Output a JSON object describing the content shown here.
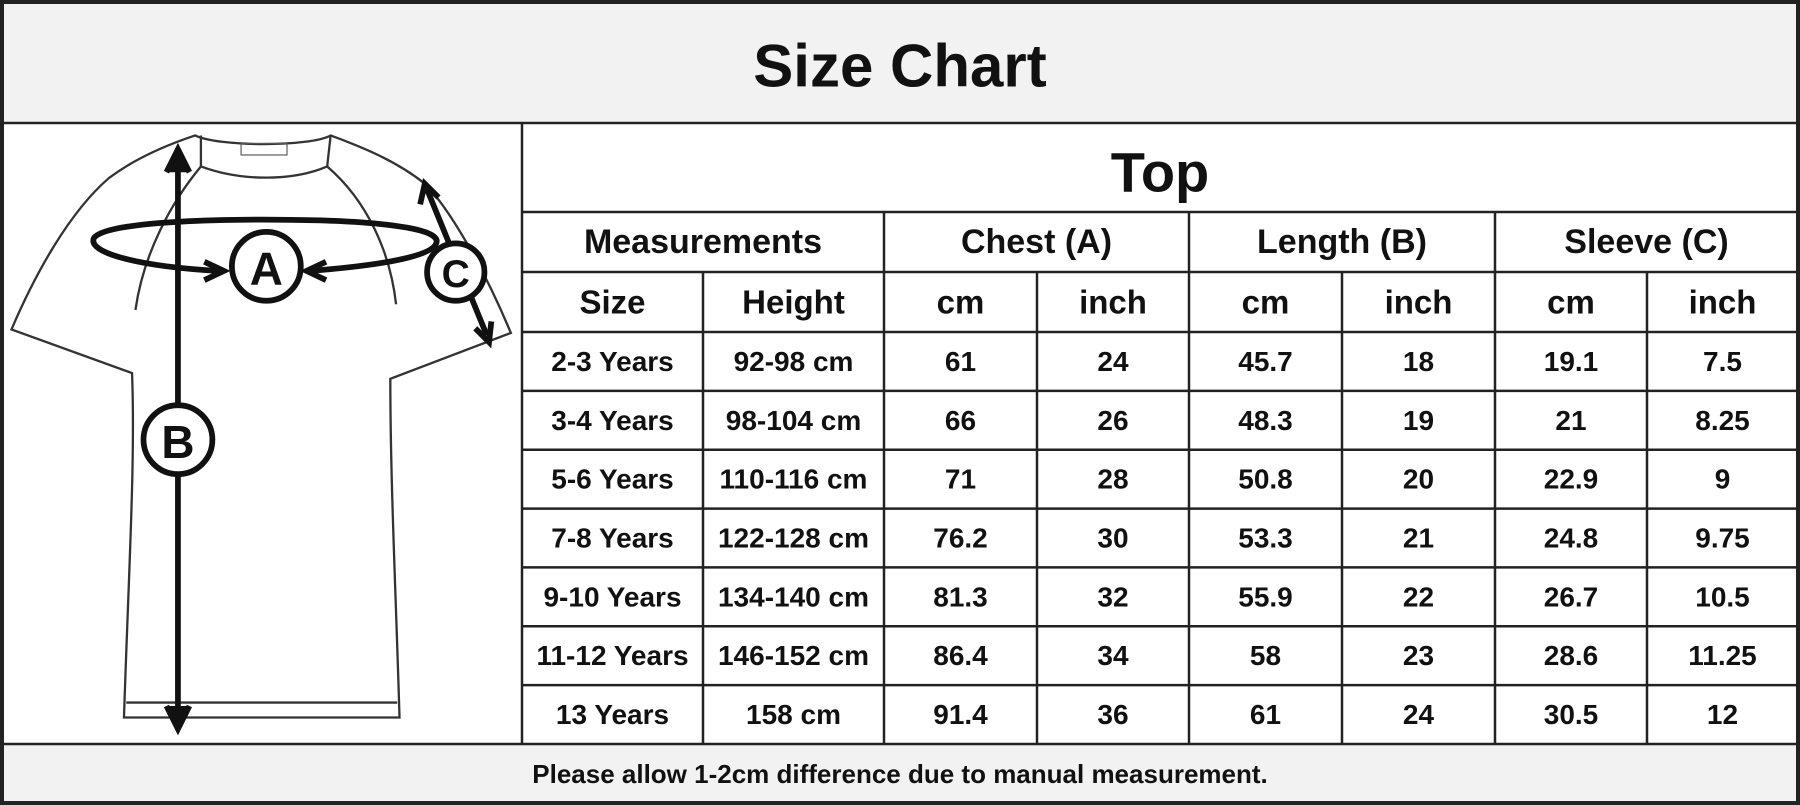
{
  "title": "Size Chart",
  "diagram": {
    "labels": [
      "A",
      "B",
      "C"
    ]
  },
  "table": {
    "section": "Top",
    "groups": [
      "Measurements",
      "Chest (A)",
      "Length (B)",
      "Sleeve (C)"
    ],
    "columns": [
      "Size",
      "Height",
      "cm",
      "inch",
      "cm",
      "inch",
      "cm",
      "inch"
    ],
    "rows": [
      [
        "2-3 Years",
        "92-98 cm",
        61,
        24,
        45.7,
        18,
        19.1,
        7.5
      ],
      [
        "3-4 Years",
        "98-104 cm",
        66,
        26,
        48.3,
        19,
        21,
        8.25
      ],
      [
        "5-6 Years",
        "110-116 cm",
        71,
        28,
        50.8,
        20,
        22.9,
        9
      ],
      [
        "7-8 Years",
        "122-128 cm",
        76.2,
        30,
        53.3,
        21,
        24.8,
        9.75
      ],
      [
        "9-10 Years",
        "134-140 cm",
        81.3,
        32,
        55.9,
        22,
        26.7,
        10.5
      ],
      [
        "11-12 Years",
        "146-152 cm",
        86.4,
        34,
        58,
        23,
        28.6,
        11.25
      ],
      [
        "13 Years",
        "158 cm",
        91.4,
        36,
        61,
        24,
        30.5,
        12
      ]
    ]
  },
  "note": "Please allow 1-2cm difference due to manual measurement."
}
